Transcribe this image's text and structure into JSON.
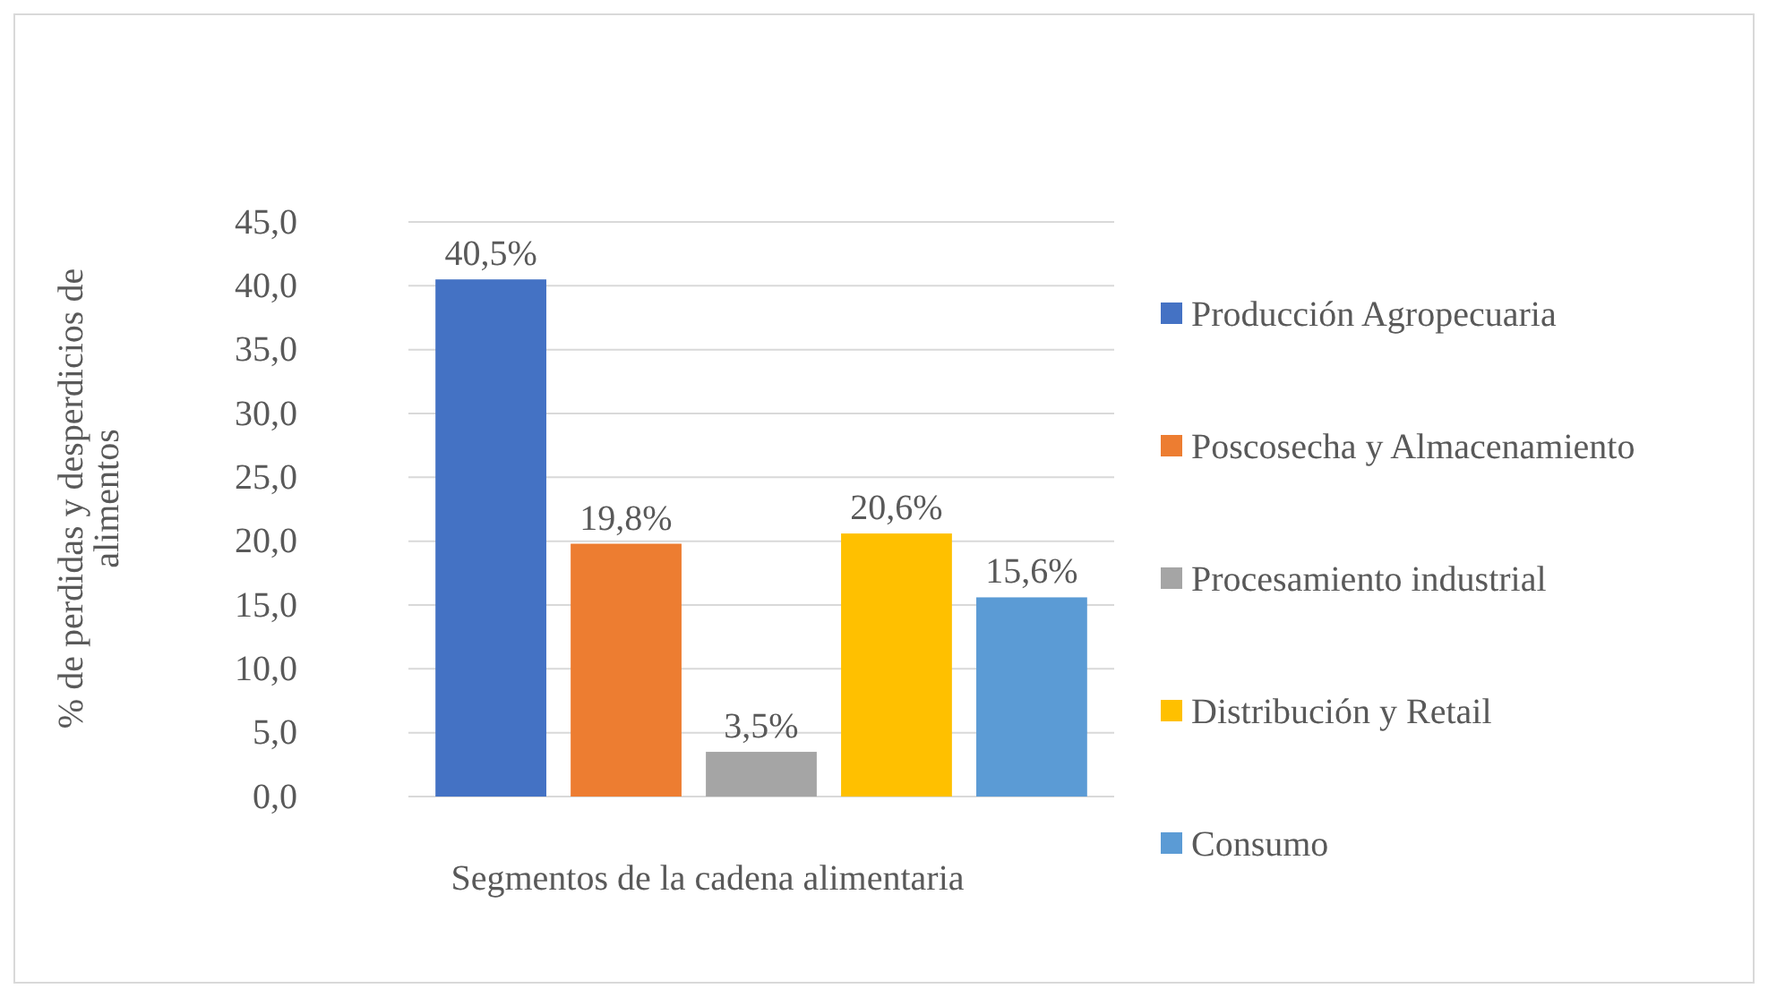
{
  "chart_data": {
    "type": "bar",
    "ylabel": "% de perdidas y desperdicios de alimentos",
    "xlabel": "Segmentos de la cadena alimentaria",
    "categories": [
      null,
      null,
      null,
      null,
      null
    ],
    "series": [
      {
        "name": "Producción Agropecuaria",
        "color": "#4472c4",
        "values": [
          40.5,
          null,
          null,
          null,
          null
        ],
        "value_labels": [
          "40,5%",
          null,
          null,
          null,
          null
        ]
      },
      {
        "name": "Poscosecha y Almacenamiento",
        "color": "#ed7d31",
        "values": [
          null,
          19.8,
          null,
          null,
          null
        ],
        "value_labels": [
          null,
          "19,8%",
          null,
          null,
          null
        ]
      },
      {
        "name": "Procesamiento industrial",
        "color": "#a5a5a5",
        "values": [
          null,
          null,
          3.5,
          null,
          null
        ],
        "value_labels": [
          null,
          null,
          "3,5%",
          null,
          null
        ]
      },
      {
        "name": "Distribución y Retail",
        "color": "#ffc000",
        "values": [
          null,
          null,
          null,
          20.6,
          null
        ],
        "value_labels": [
          null,
          null,
          null,
          "20,6%",
          null
        ]
      },
      {
        "name": "Consumo",
        "color": "#5b9bd5",
        "values": [
          null,
          null,
          null,
          null,
          15.6
        ],
        "value_labels": [
          null,
          null,
          null,
          null,
          "15,6%"
        ]
      }
    ],
    "ylim": [
      0,
      45
    ],
    "yticks": [
      {
        "value": 0,
        "label": "0,0"
      },
      {
        "value": 5,
        "label": "5,0"
      },
      {
        "value": 10,
        "label": "10,0"
      },
      {
        "value": 15,
        "label": "15,0"
      },
      {
        "value": 20,
        "label": "20,0"
      },
      {
        "value": 25,
        "label": "25,0"
      },
      {
        "value": 30,
        "label": "30,0"
      },
      {
        "value": 35,
        "label": "35,0"
      },
      {
        "value": 40,
        "label": "40,0"
      },
      {
        "value": 45,
        "label": "45,0"
      }
    ],
    "grid": "y",
    "legend": "right"
  }
}
